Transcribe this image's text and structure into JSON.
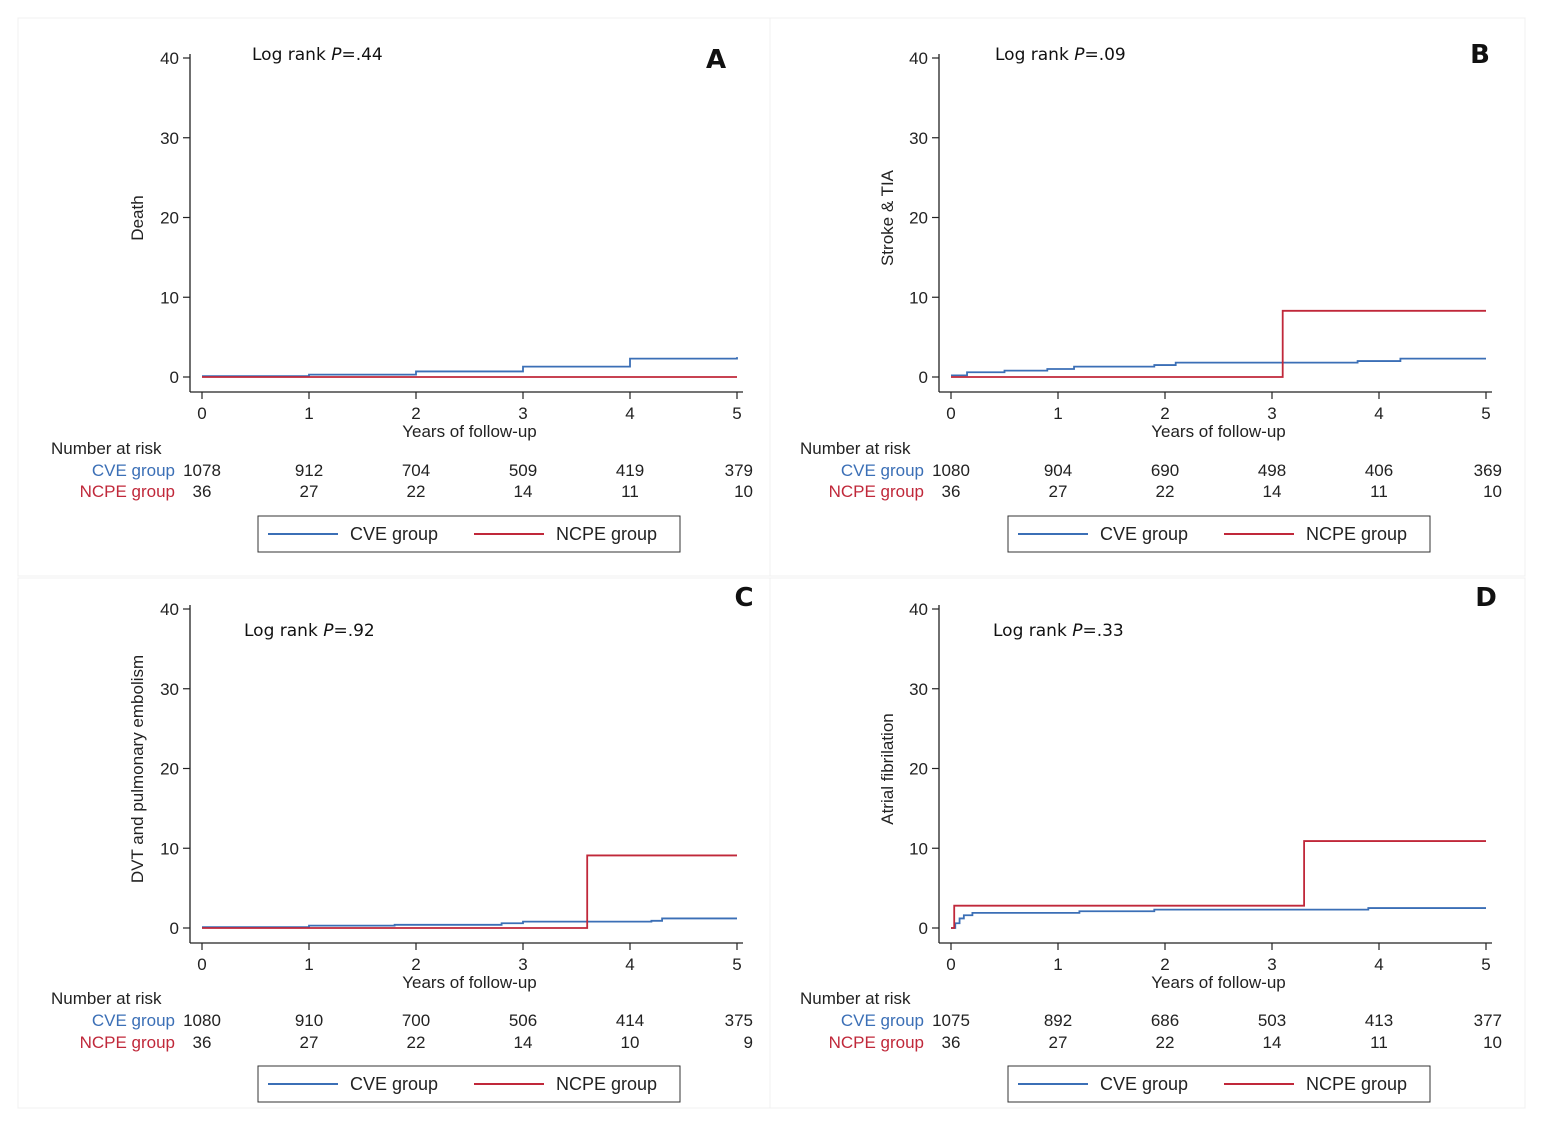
{
  "colors": {
    "cve": "#3b6fb6",
    "ncpe": "#c0283a",
    "axis": "#222222"
  },
  "legend": {
    "cve_label": "CVE group",
    "ncpe_label": "NCPE group"
  },
  "risk_table_title": "Number at risk",
  "chart_data": [
    {
      "type": "line",
      "panel_letter": "A",
      "annotation": {
        "prefix": "Log rank ",
        "italic": "P",
        "suffix": "=.44"
      },
      "ylabel": "Death",
      "xlabel": "Years of follow-up",
      "xlim": [
        0,
        5
      ],
      "ylim": [
        0,
        40
      ],
      "xticks": [
        0,
        1,
        2,
        3,
        4,
        5
      ],
      "yticks": [
        0,
        10,
        20,
        30,
        40
      ],
      "series": [
        {
          "name": "CVE group",
          "x": [
            0,
            1,
            2,
            3,
            4,
            5
          ],
          "y": [
            0.1,
            0.3,
            0.7,
            1.3,
            2.3,
            2.5
          ]
        },
        {
          "name": "NCPE group",
          "x": [
            0,
            5
          ],
          "y": [
            0,
            0
          ]
        }
      ],
      "risk_table": {
        "CVE group": [
          1078,
          912,
          704,
          509,
          419,
          379
        ],
        "NCPE group": [
          36,
          27,
          22,
          14,
          11,
          10
        ]
      }
    },
    {
      "type": "line",
      "panel_letter": "B",
      "annotation": {
        "prefix": "Log rank ",
        "italic": "P",
        "suffix": "=.09"
      },
      "ylabel": "Stroke & TIA",
      "xlabel": "Years of follow-up",
      "xlim": [
        0,
        5
      ],
      "ylim": [
        0,
        40
      ],
      "xticks": [
        0,
        1,
        2,
        3,
        4,
        5
      ],
      "yticks": [
        0,
        10,
        20,
        30,
        40
      ],
      "series": [
        {
          "name": "CVE group",
          "x": [
            0,
            0.15,
            0.5,
            0.9,
            1.15,
            1.9,
            2.1,
            3.2,
            3.8,
            4.2,
            5
          ],
          "y": [
            0.2,
            0.6,
            0.8,
            1.0,
            1.3,
            1.5,
            1.8,
            1.8,
            2.0,
            2.3,
            2.3
          ]
        },
        {
          "name": "NCPE group",
          "x": [
            0,
            3.1,
            5
          ],
          "y": [
            0,
            8.3,
            8.3
          ]
        }
      ],
      "risk_table": {
        "CVE group": [
          1080,
          904,
          690,
          498,
          406,
          369
        ],
        "NCPE group": [
          36,
          27,
          22,
          14,
          11,
          10
        ]
      }
    },
    {
      "type": "line",
      "panel_letter": "C",
      "annotation": {
        "prefix": "Log rank ",
        "italic": "P",
        "suffix": "=.92"
      },
      "ylabel": "DVT and pulmonary embolism",
      "xlabel": "Years of follow-up",
      "xlim": [
        0,
        5
      ],
      "ylim": [
        0,
        40
      ],
      "xticks": [
        0,
        1,
        2,
        3,
        4,
        5
      ],
      "yticks": [
        0,
        10,
        20,
        30,
        40
      ],
      "series": [
        {
          "name": "CVE group",
          "x": [
            0,
            1,
            1.8,
            2.8,
            3.0,
            4.2,
            4.3,
            5
          ],
          "y": [
            0.1,
            0.3,
            0.4,
            0.6,
            0.8,
            0.9,
            1.2,
            1.2
          ]
        },
        {
          "name": "NCPE group",
          "x": [
            0,
            3.6,
            5
          ],
          "y": [
            0,
            9.1,
            9.1
          ]
        }
      ],
      "risk_table": {
        "CVE group": [
          1080,
          910,
          700,
          506,
          414,
          375
        ],
        "NCPE group": [
          36,
          27,
          22,
          14,
          10,
          9
        ]
      }
    },
    {
      "type": "line",
      "panel_letter": "D",
      "annotation": {
        "prefix": "Log rank ",
        "italic": "P",
        "suffix": "=.33"
      },
      "ylabel": "Atrial fibrilation",
      "xlabel": "Years of follow-up",
      "xlim": [
        0,
        5
      ],
      "ylim": [
        0,
        40
      ],
      "xticks": [
        0,
        1,
        2,
        3,
        4,
        5
      ],
      "yticks": [
        0,
        10,
        20,
        30,
        40
      ],
      "series": [
        {
          "name": "CVE group",
          "x": [
            0,
            0.04,
            0.08,
            0.12,
            0.2,
            1.0,
            1.2,
            1.9,
            3.0,
            3.9,
            5
          ],
          "y": [
            0,
            0.6,
            1.2,
            1.6,
            1.9,
            1.9,
            2.1,
            2.3,
            2.3,
            2.5,
            2.5
          ]
        },
        {
          "name": "NCPE group",
          "x": [
            0,
            0.03,
            3.3,
            5
          ],
          "y": [
            0,
            2.8,
            10.9,
            10.9
          ]
        }
      ],
      "risk_table": {
        "CVE group": [
          1075,
          892,
          686,
          503,
          413,
          377
        ],
        "NCPE group": [
          36,
          27,
          22,
          14,
          11,
          10
        ]
      }
    }
  ]
}
